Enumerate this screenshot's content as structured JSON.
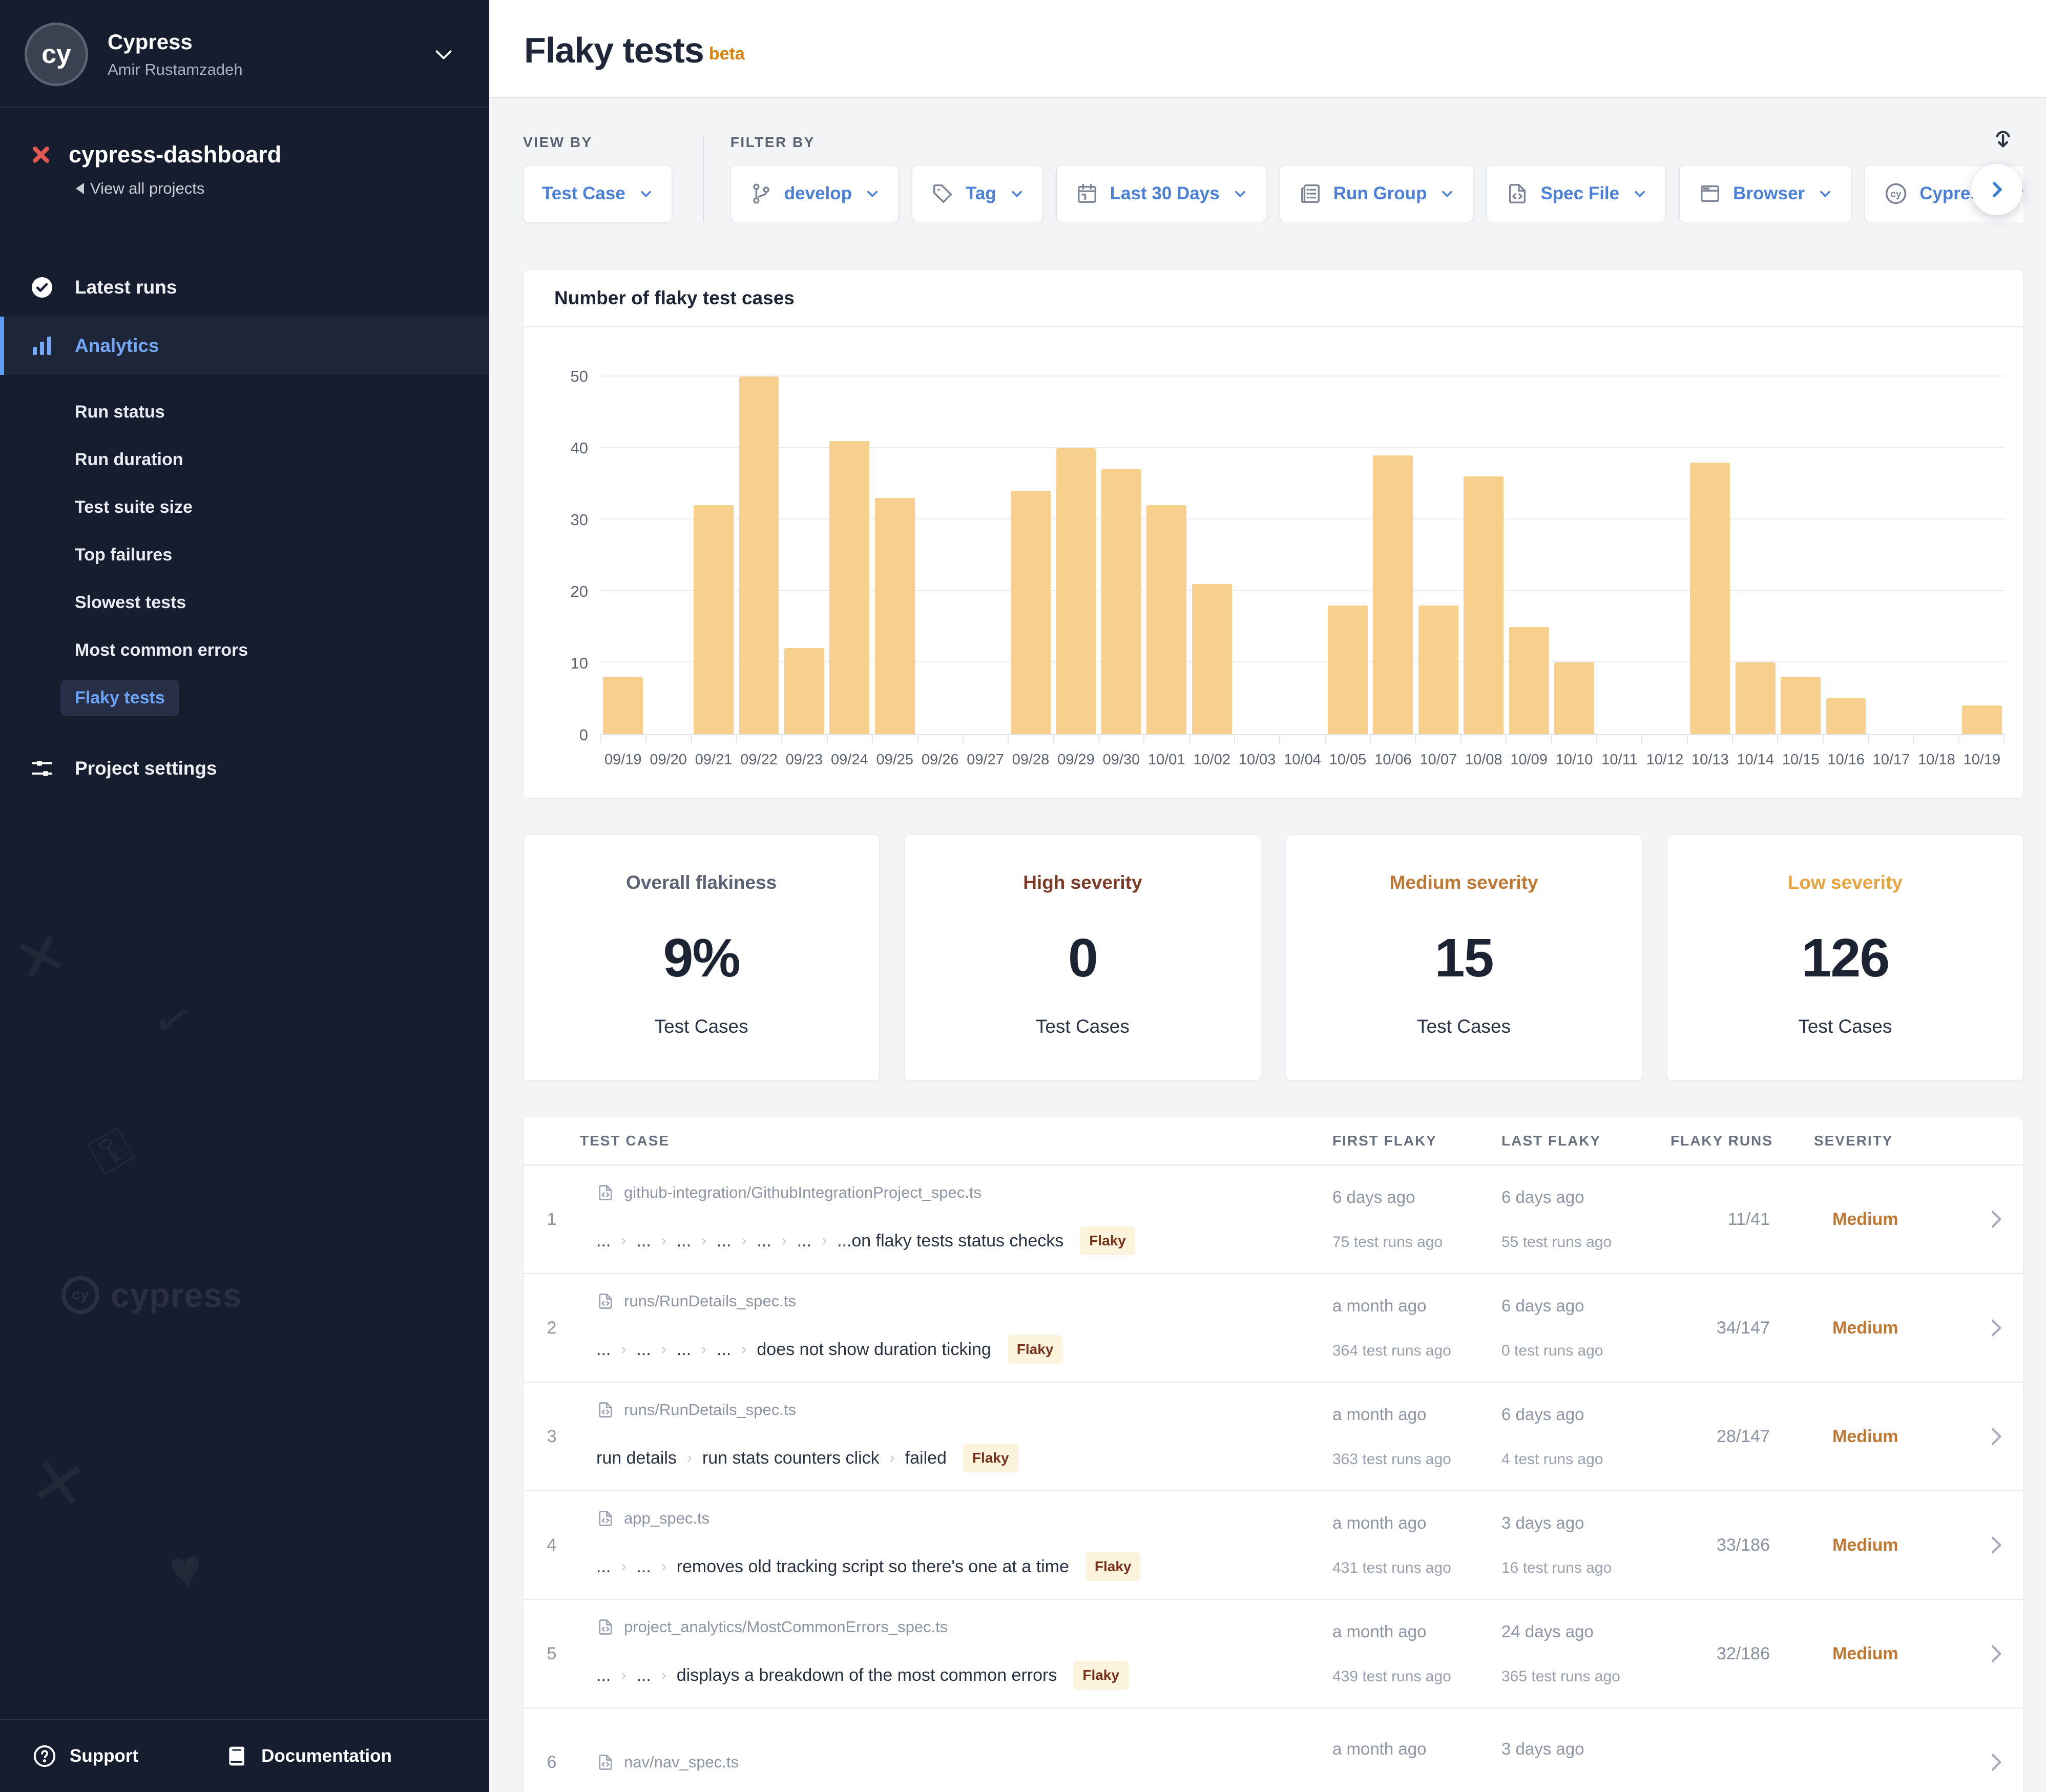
{
  "sidebar": {
    "avatar_text": "cy",
    "org_name": "Cypress",
    "org_user": "Amir Rustamzadeh",
    "project_name": "cypress-dashboard",
    "view_all_projects": "View all projects",
    "latest_runs": "Latest runs",
    "analytics": "Analytics",
    "analytics_items": [
      "Run status",
      "Run duration",
      "Test suite size",
      "Top failures",
      "Slowest tests",
      "Most common errors",
      "Flaky tests"
    ],
    "active_item": "Flaky tests",
    "project_settings": "Project settings",
    "support": "Support",
    "documentation": "Documentation",
    "watermark": "cypress"
  },
  "header": {
    "title": "Flaky tests",
    "badge": "beta"
  },
  "filters": {
    "view_by_label": "VIEW BY",
    "filter_by_label": "FILTER BY",
    "view_by": [
      {
        "label": "Test Case",
        "icon": ""
      }
    ],
    "filter_by": [
      {
        "label": "develop",
        "icon": "branch"
      },
      {
        "label": "Tag",
        "icon": "tag"
      },
      {
        "label": "Last 30 Days",
        "icon": "calendar"
      },
      {
        "label": "Run Group",
        "icon": "run-group"
      },
      {
        "label": "Spec File",
        "icon": "spec-file"
      },
      {
        "label": "Browser",
        "icon": "browser"
      },
      {
        "label": "Cypress Version",
        "icon": "cypress"
      }
    ]
  },
  "chart_data": {
    "type": "bar",
    "title": "Number of flaky test cases",
    "categories": [
      "09/19",
      "09/20",
      "09/21",
      "09/22",
      "09/23",
      "09/24",
      "09/25",
      "09/26",
      "09/27",
      "09/28",
      "09/29",
      "09/30",
      "10/01",
      "10/02",
      "10/03",
      "10/04",
      "10/05",
      "10/06",
      "10/07",
      "10/08",
      "10/09",
      "10/10",
      "10/11",
      "10/12",
      "10/13",
      "10/14",
      "10/15",
      "10/16",
      "10/17",
      "10/18",
      "10/19"
    ],
    "values": [
      8,
      0,
      32,
      50,
      12,
      41,
      33,
      0,
      0,
      34,
      40,
      37,
      32,
      21,
      0,
      0,
      18,
      39,
      18,
      36,
      15,
      10,
      0,
      0,
      38,
      10,
      8,
      5,
      0,
      0,
      4
    ],
    "xlabel": "",
    "ylabel": "",
    "ylim": [
      0,
      50
    ],
    "yticks": [
      0,
      10,
      20,
      30,
      40,
      50
    ],
    "bar_color": "#f6d08c",
    "grid": true,
    "legend": false
  },
  "summary_cards": [
    {
      "label": "Overall flakiness",
      "value": "9%",
      "sub": "Test Cases",
      "color": "#5b6374"
    },
    {
      "label": "High severity",
      "value": "0",
      "sub": "Test Cases",
      "color": "#7e3b28"
    },
    {
      "label": "Medium severity",
      "value": "15",
      "sub": "Test Cases",
      "color": "#be7832"
    },
    {
      "label": "Low severity",
      "value": "126",
      "sub": "Test Cases",
      "color": "#e8a33d"
    }
  ],
  "table": {
    "columns": [
      "TEST CASE",
      "FIRST FLAKY",
      "LAST FLAKY",
      "FLAKY RUNS",
      "SEVERITY"
    ],
    "rows": [
      {
        "num": "1",
        "spec": "github-integration/GithubIntegrationProject_spec.ts",
        "crumbs": [
          "...",
          "...",
          "...",
          "...",
          "...",
          "..."
        ],
        "title": "...on flaky tests status checks",
        "badge": "Flaky",
        "first": "6 days ago",
        "first_sub": "75 test runs ago",
        "last": "6 days ago",
        "last_sub": "55 test runs ago",
        "runs": "11/41",
        "severity": "Medium"
      },
      {
        "num": "2",
        "spec": "runs/RunDetails_spec.ts",
        "crumbs": [
          "...",
          "...",
          "...",
          "..."
        ],
        "title": "does not show duration ticking",
        "badge": "Flaky",
        "first": "a month ago",
        "first_sub": "364 test runs ago",
        "last": "6 days ago",
        "last_sub": "0 test runs ago",
        "runs": "34/147",
        "severity": "Medium"
      },
      {
        "num": "3",
        "spec": "runs/RunDetails_spec.ts",
        "crumbs": [
          "run details",
          "run stats counters click"
        ],
        "title": "failed",
        "badge": "Flaky",
        "first": "a month ago",
        "first_sub": "363 test runs ago",
        "last": "6 days ago",
        "last_sub": "4 test runs ago",
        "runs": "28/147",
        "severity": "Medium"
      },
      {
        "num": "4",
        "spec": "app_spec.ts",
        "crumbs": [
          "...",
          "..."
        ],
        "title": "removes old tracking script so there's one at a time",
        "badge": "Flaky",
        "first": "a month ago",
        "first_sub": "431 test runs ago",
        "last": "3 days ago",
        "last_sub": "16 test runs ago",
        "runs": "33/186",
        "severity": "Medium"
      },
      {
        "num": "5",
        "spec": "project_analytics/MostCommonErrors_spec.ts",
        "crumbs": [
          "...",
          "..."
        ],
        "title": "displays a breakdown of the most common errors",
        "badge": "Flaky",
        "first": "a month ago",
        "first_sub": "439 test runs ago",
        "last": "24 days ago",
        "last_sub": "365 test runs ago",
        "runs": "32/186",
        "severity": "Medium"
      },
      {
        "num": "6",
        "spec": "nav/nav_spec.ts",
        "crumbs": [],
        "title": "",
        "badge": "",
        "first": "a month ago",
        "first_sub": "",
        "last": "3 days ago",
        "last_sub": "",
        "runs": "",
        "severity": ""
      }
    ]
  }
}
